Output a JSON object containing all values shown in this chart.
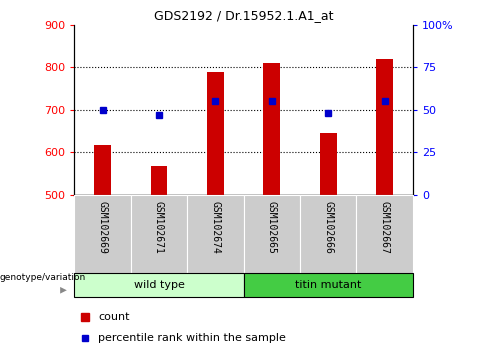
{
  "title": "GDS2192 / Dr.15952.1.A1_at",
  "samples": [
    "GSM102669",
    "GSM102671",
    "GSM102674",
    "GSM102665",
    "GSM102666",
    "GSM102667"
  ],
  "count_values": [
    618,
    568,
    790,
    810,
    645,
    820
  ],
  "percentile_values": [
    50,
    47,
    55,
    55,
    48,
    55
  ],
  "ylim_left": [
    500,
    900
  ],
  "ylim_right": [
    0,
    100
  ],
  "yticks_left": [
    500,
    600,
    700,
    800,
    900
  ],
  "yticks_right": [
    0,
    25,
    50,
    75,
    100
  ],
  "bar_bottom": 500,
  "bar_color": "#cc0000",
  "dot_color": "#0000cc",
  "group1_color": "#ccffcc",
  "group2_color": "#44cc44",
  "label_bg_color": "#cccccc",
  "title_fontsize": 9,
  "tick_fontsize": 8,
  "label_fontsize": 7,
  "group_fontsize": 8,
  "legend_fontsize": 8,
  "genotype_label": "genotype/variation",
  "group1_label": "wild type",
  "group2_label": "titin mutant"
}
